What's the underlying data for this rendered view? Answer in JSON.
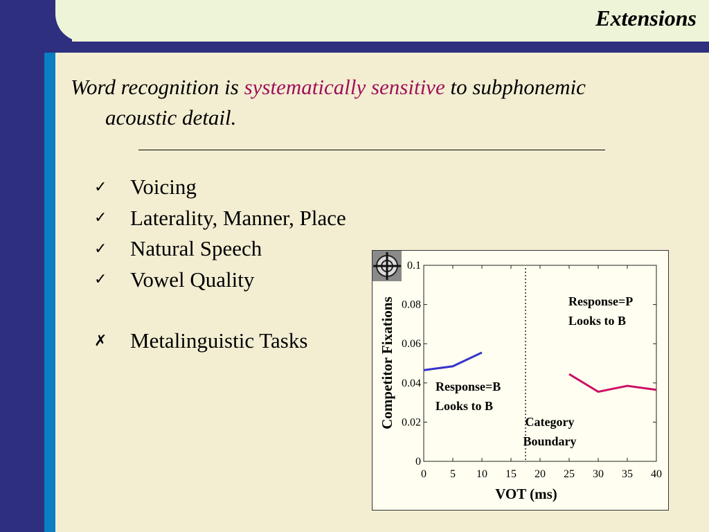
{
  "slide": {
    "title": "Extensions",
    "subtitle_part1": "Word recognition is ",
    "subtitle_highlight": "systematically sensitive",
    "subtitle_part2": " to subphonemic",
    "subtitle_line2": "acoustic detail.",
    "highlight_color": "#a0105a",
    "bullets": [
      {
        "mark": "✓",
        "text": "Voicing"
      },
      {
        "mark": "✓",
        "text": "Laterality, Manner, Place"
      },
      {
        "mark": "✓",
        "text": "Natural Speech"
      },
      {
        "mark": "✓",
        "text": "Vowel Quality"
      },
      {
        "mark": "✗",
        "text": "Metalinguistic Tasks"
      }
    ],
    "icon": "crosshair-target-icon"
  },
  "chart_data": {
    "type": "line",
    "xlabel": "VOT (ms)",
    "ylabel": "Competitor Fixations",
    "xlim": [
      0,
      40
    ],
    "ylim": [
      0,
      0.1
    ],
    "x_ticks": [
      "0",
      "5",
      "10",
      "15",
      "20",
      "25",
      "30",
      "35",
      "40"
    ],
    "y_ticks": [
      "0",
      "0.02",
      "0.04",
      "0.06",
      "0.08",
      "0.1"
    ],
    "grid": false,
    "category_boundary": 17.5,
    "series": [
      {
        "x": [
          0,
          5,
          10
        ],
        "y": [
          0.0465,
          0.0485,
          0.0555
        ],
        "color": "#3333cc"
      },
      {
        "x": [
          25,
          30,
          35,
          40
        ],
        "y": [
          0.0445,
          0.0355,
          0.0385,
          0.0365
        ],
        "color": "#cc1166"
      }
    ],
    "annotations": [
      {
        "lines": [
          "Response=P",
          "Looks to B"
        ]
      },
      {
        "lines": [
          "Response=B",
          "Looks to B"
        ]
      },
      {
        "lines": [
          "Category",
          "Boundary"
        ]
      }
    ]
  }
}
